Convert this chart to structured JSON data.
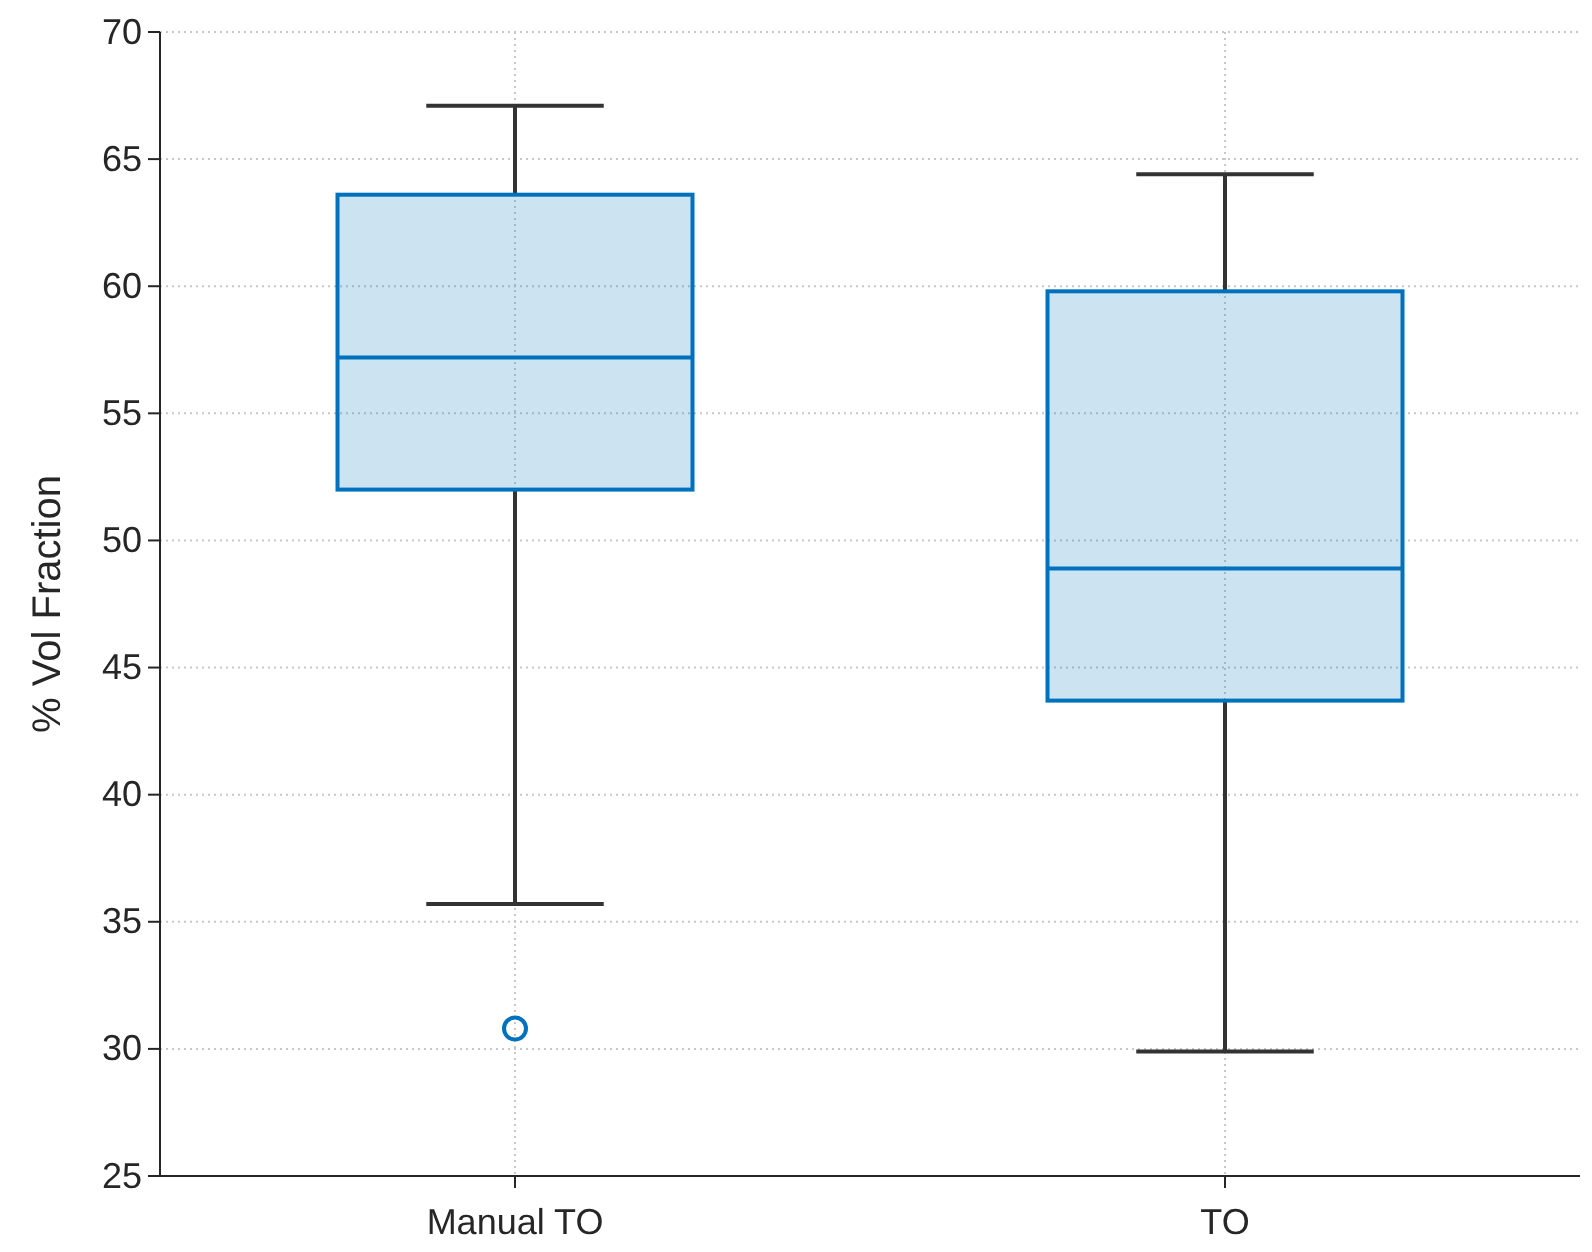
{
  "chart_data": {
    "type": "box",
    "ylabel": "% Vol Fraction",
    "categories": [
      "Manual TO",
      "TO"
    ],
    "color": "#0072bd",
    "boxes": [
      {
        "low": 35.7,
        "q1": 52.0,
        "median": 57.2,
        "q3": 63.6,
        "high": 67.1,
        "outliers": [
          30.8
        ]
      },
      {
        "low": 29.9,
        "q1": 43.7,
        "median": 48.9,
        "q3": 59.8,
        "high": 64.4
      }
    ],
    "ylim": [
      25,
      70
    ],
    "yticks": [
      25,
      30,
      35,
      40,
      45,
      50,
      55,
      60,
      65,
      70
    ],
    "grid": true
  }
}
